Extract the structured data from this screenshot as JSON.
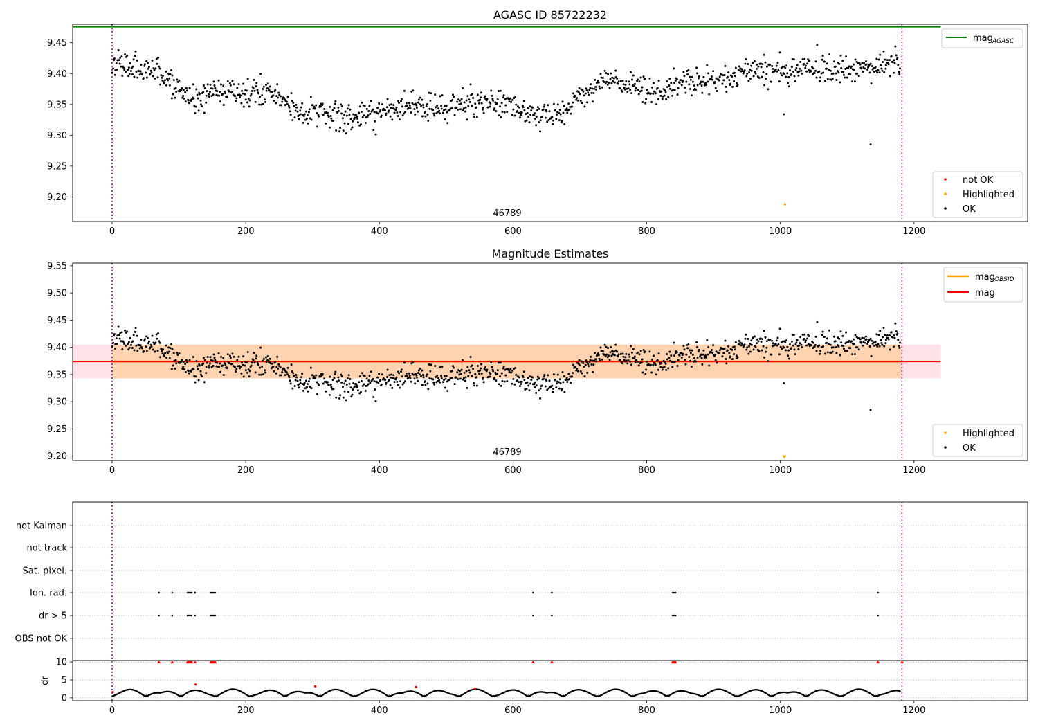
{
  "chart_data": [
    {
      "type": "scatter",
      "title": "AGASC ID 85722232",
      "xlim": [
        -59,
        1370
      ],
      "ylim": [
        9.16,
        9.48
      ],
      "xticks": [
        0,
        200,
        400,
        600,
        800,
        1000,
        1200
      ],
      "yticks": [
        9.2,
        9.25,
        9.3,
        9.35,
        9.4,
        9.45
      ],
      "ytick_labels": [
        "9.20",
        "9.25",
        "9.30",
        "9.35",
        "9.40",
        "9.45"
      ],
      "vlines": [
        0,
        1182
      ],
      "hline": {
        "name": "mag_AGASC",
        "value": 9.476,
        "x_range": [
          -59,
          1240
        ],
        "color": "#008000"
      },
      "obsid_label": {
        "text": "46789",
        "x": 591,
        "y": 9.165
      },
      "seed": 7,
      "n_points": 1180,
      "x_max": 1180,
      "noise": 0.011,
      "trend_x": [
        0,
        40,
        80,
        120,
        160,
        200,
        240,
        280,
        320,
        360,
        400,
        440,
        480,
        520,
        560,
        600,
        640,
        670,
        700,
        740,
        780,
        820,
        860,
        900,
        960,
        1020,
        1080,
        1180
      ],
      "trend_mag": [
        9.418,
        9.412,
        9.395,
        9.355,
        9.372,
        9.37,
        9.368,
        9.34,
        9.335,
        9.328,
        9.338,
        9.348,
        9.346,
        9.347,
        9.358,
        9.349,
        9.333,
        9.332,
        9.36,
        9.395,
        9.38,
        9.37,
        9.385,
        9.392,
        9.405,
        9.405,
        9.407,
        9.415
      ],
      "outliers": [
        [
          1005,
          9.334
        ],
        [
          1135,
          9.285
        ]
      ],
      "highlighted": [
        [
          1007,
          9.188
        ]
      ],
      "legend_lines": [
        {
          "label": "mag",
          "sub": "AGASC",
          "color": "#008000"
        }
      ],
      "legend_points": [
        {
          "label": "not OK",
          "color": "#ff0000"
        },
        {
          "label": "Highlighted",
          "color": "#ffa500"
        },
        {
          "label": "OK",
          "color": "#000000"
        }
      ]
    },
    {
      "type": "scatter",
      "title": "Magnitude Estimates",
      "xlim": [
        -59,
        1370
      ],
      "ylim": [
        9.192,
        9.555
      ],
      "xticks": [
        0,
        200,
        400,
        600,
        800,
        1000,
        1200
      ],
      "yticks": [
        9.2,
        9.25,
        9.3,
        9.35,
        9.4,
        9.45,
        9.5,
        9.55
      ],
      "ytick_labels": [
        "9.20",
        "9.25",
        "9.30",
        "9.35",
        "9.40",
        "9.45",
        "9.50",
        "9.55"
      ],
      "vlines": [
        0,
        1182
      ],
      "mag": 9.374,
      "mag_band": [
        9.343,
        9.405
      ],
      "band_x_range": [
        -59,
        1240
      ],
      "obsid_label": {
        "text": "46789",
        "x": 591,
        "y": 9.196
      },
      "highlighted": [
        [
          1006,
          9.199
        ]
      ],
      "legend_lines": [
        {
          "label": "mag",
          "sub": "OBSID",
          "color": "#ffa500"
        },
        {
          "label": "mag",
          "sub": "",
          "color": "#ff0000"
        }
      ],
      "legend_points": [
        {
          "label": "Highlighted",
          "color": "#ffa500"
        },
        {
          "label": "OK",
          "color": "#000000"
        }
      ]
    },
    {
      "type": "scatter",
      "title": "",
      "xlim": [
        -59,
        1370
      ],
      "xticks": [
        0,
        200,
        400,
        600,
        800,
        1000,
        1200
      ],
      "vlines": [
        0,
        1182
      ],
      "flag_categories": [
        "not Kalman",
        "not track",
        "Sat. pixel.",
        "Ion. rad.",
        "dr > 5",
        "OBS not OK"
      ],
      "flag_x": [
        70,
        90,
        113,
        115,
        117,
        119,
        124,
        148,
        150,
        152,
        154,
        630,
        658,
        839,
        841,
        843,
        1146
      ],
      "dr": {
        "ylabel": "dr",
        "yticks": [
          0,
          5,
          10
        ],
        "ylim": [
          -0.8,
          10.4
        ],
        "red_points_at_10": [
          70,
          90,
          113,
          115,
          117,
          119,
          124,
          148,
          150,
          152,
          154,
          630,
          658,
          839,
          841,
          843,
          1146,
          1182
        ],
        "red_points_other": [
          [
            1,
            1.6
          ],
          [
            125,
            3.7
          ],
          [
            304,
            3.2
          ],
          [
            455,
            3.0
          ],
          [
            543,
            2.6
          ]
        ]
      }
    }
  ]
}
